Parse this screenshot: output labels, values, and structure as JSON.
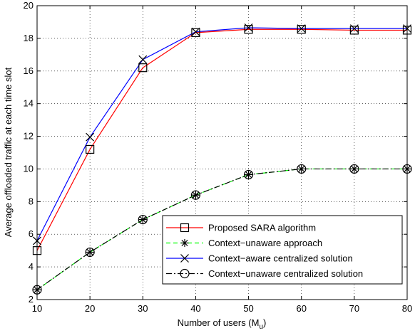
{
  "chart_data": {
    "type": "line",
    "x": [
      10,
      20,
      30,
      40,
      50,
      60,
      70,
      80
    ],
    "xlabel": "Number of users (M",
    "xlabel_sub": "u",
    "xlabel_end": ")",
    "ylabel": "Average offloaded traffic at each time slot",
    "xlim": [
      10,
      80
    ],
    "ylim": [
      2,
      20
    ],
    "xticks": [
      10,
      20,
      30,
      40,
      50,
      60,
      70,
      80
    ],
    "yticks": [
      2,
      4,
      6,
      8,
      10,
      12,
      14,
      16,
      18,
      20
    ],
    "grid": true,
    "legend_position": "lower-right",
    "series": [
      {
        "name": "Proposed SARA algorithm",
        "color": "#ff0000",
        "dash": "solid",
        "marker": "square",
        "values": [
          5.0,
          11.2,
          16.2,
          18.35,
          18.55,
          18.55,
          18.5,
          18.5
        ]
      },
      {
        "name": "Context−unaware approach",
        "color": "#00ff00",
        "dash": "dashed",
        "marker": "asterisk",
        "values": [
          2.6,
          4.9,
          6.9,
          8.4,
          9.65,
          10.0,
          10.0,
          10.0
        ]
      },
      {
        "name": "Context−aware centralized solution",
        "color": "#0000ff",
        "dash": "solid",
        "marker": "x",
        "values": [
          5.6,
          11.95,
          16.7,
          18.4,
          18.65,
          18.6,
          18.6,
          18.6
        ]
      },
      {
        "name": "Context−unaware centralized solution",
        "color": "#000000",
        "dash": "dashdot",
        "marker": "circle",
        "values": [
          2.6,
          4.9,
          6.9,
          8.4,
          9.65,
          10.0,
          10.0,
          10.0
        ]
      }
    ]
  }
}
